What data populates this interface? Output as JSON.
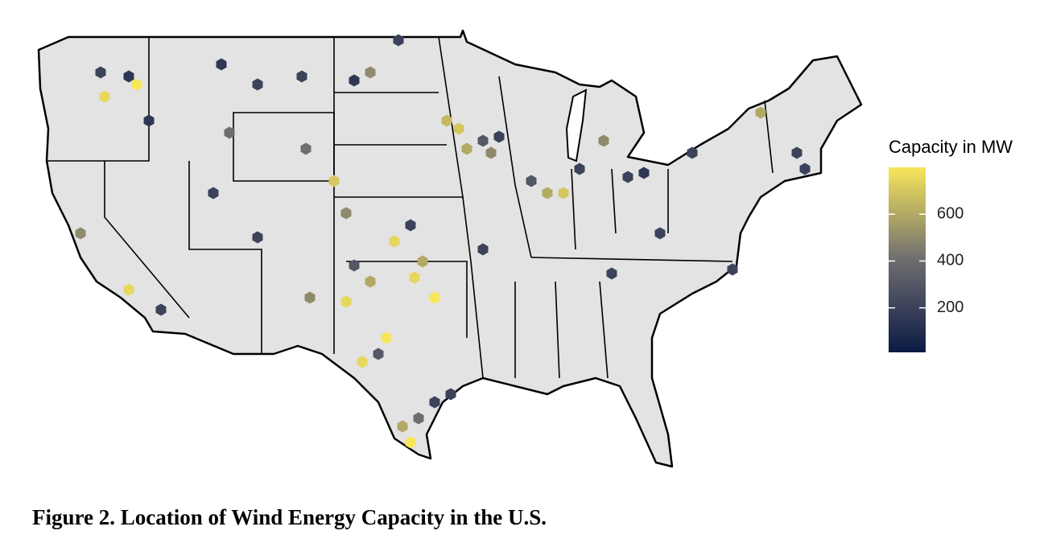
{
  "map": {
    "caption": "Figure 2. Location of Wind Energy Capacity in the U.S.",
    "legend": {
      "title": "Capacity in MW",
      "range": [
        10,
        800
      ],
      "ticks": [
        200,
        400,
        600
      ],
      "colors": [
        "#0c1a45",
        "#6e6d70",
        "#f7e65a"
      ]
    },
    "hexbins": {
      "values": [
        750,
        800,
        200,
        150,
        150,
        150,
        200,
        200,
        150,
        500,
        200,
        650,
        700,
        300,
        500,
        200,
        600,
        700,
        600,
        300,
        200,
        500,
        200,
        150,
        200,
        600,
        200,
        200,
        700,
        500,
        750,
        200,
        600,
        750,
        800,
        750,
        600,
        800,
        750,
        300,
        800,
        400,
        200,
        600,
        500,
        750,
        500,
        200,
        200,
        200,
        200,
        200,
        200,
        400,
        400,
        200,
        300,
        200
      ]
    }
  }
}
